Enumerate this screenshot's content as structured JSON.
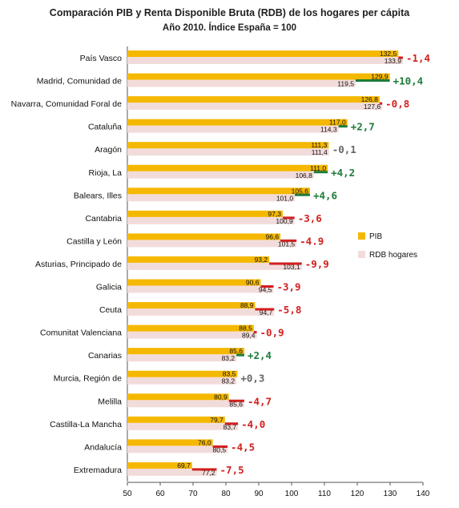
{
  "chart_data": {
    "type": "bar",
    "title": "Comparación PIB y Renta Disponible  Bruta (RDB) de los hogares  per cápita",
    "subtitle": "Año 2010.  Índice España = 100",
    "categories": [
      "País Vasco",
      "Madrid, Comunidad de",
      "Navarra, Comunidad Foral de",
      "Cataluña",
      "Aragón",
      "Rioja, La",
      "Balears, Illes",
      "Cantabria",
      "Castilla y León",
      "Asturias, Principado de",
      "Galicia",
      "Ceuta",
      "Comunitat Valenciana",
      "Canarias",
      "Murcia, Región de",
      "Melilla",
      "Castilla-La Mancha",
      "Andalucía",
      "Extremadura"
    ],
    "series": [
      {
        "name": "PIB",
        "color": "#F5B800",
        "values": [
          132.5,
          129.9,
          126.8,
          117.0,
          111.3,
          111.0,
          105.6,
          97.3,
          96.6,
          93.2,
          90.6,
          88.9,
          88.5,
          85.6,
          83.5,
          80.9,
          79.7,
          76.0,
          69.7
        ]
      },
      {
        "name": "RDB hogares",
        "color": "#F2DCDB",
        "values": [
          133.9,
          119.5,
          127.6,
          114.3,
          111.4,
          106.8,
          101.0,
          100.9,
          101.5,
          103.1,
          94.5,
          94.7,
          89.4,
          83.2,
          83.2,
          85.6,
          83.7,
          80.5,
          77.2
        ]
      }
    ],
    "pib_labels": [
      "132,5",
      "129,9",
      "126,8",
      "117,0",
      "111,3",
      "111,0",
      "105,6",
      "97,3",
      "96,6",
      "93,2",
      "90,6",
      "88,9",
      "88,5",
      "85,6",
      "83,5",
      "80,9",
      "79,7",
      "76,0",
      "69,7"
    ],
    "rdb_labels": [
      "133,9",
      "119,5",
      "127,6",
      "114,3",
      "111,4",
      "106,8",
      "101,0",
      "100,9",
      "101,5",
      "103,1",
      "94,5",
      "94,7",
      "89,4",
      "83,2",
      "83,2",
      "85,6",
      "83,7",
      "80,5",
      "77,2"
    ],
    "differences": [
      "-1,4",
      "+10,4",
      "-0,8",
      "+2,7",
      "-0,1",
      "+4,2",
      "+4,6",
      "-3,6",
      "-4.9",
      "-9,9",
      "-3,9",
      "-5,8",
      "-0,9",
      "+2,4",
      "+0,3",
      "-4,7",
      "-4,0",
      "-4,5",
      "-7,5"
    ],
    "difference_colors": {
      "positive": "#1E7B3A",
      "negative": "#D21F1F",
      "neutral": "#666666"
    },
    "xlim": [
      50,
      140
    ],
    "xticks": [
      "50",
      "60",
      "70",
      "80",
      "90",
      "100",
      "110",
      "120",
      "130",
      "140"
    ],
    "grid": false,
    "legend_position": "right"
  }
}
